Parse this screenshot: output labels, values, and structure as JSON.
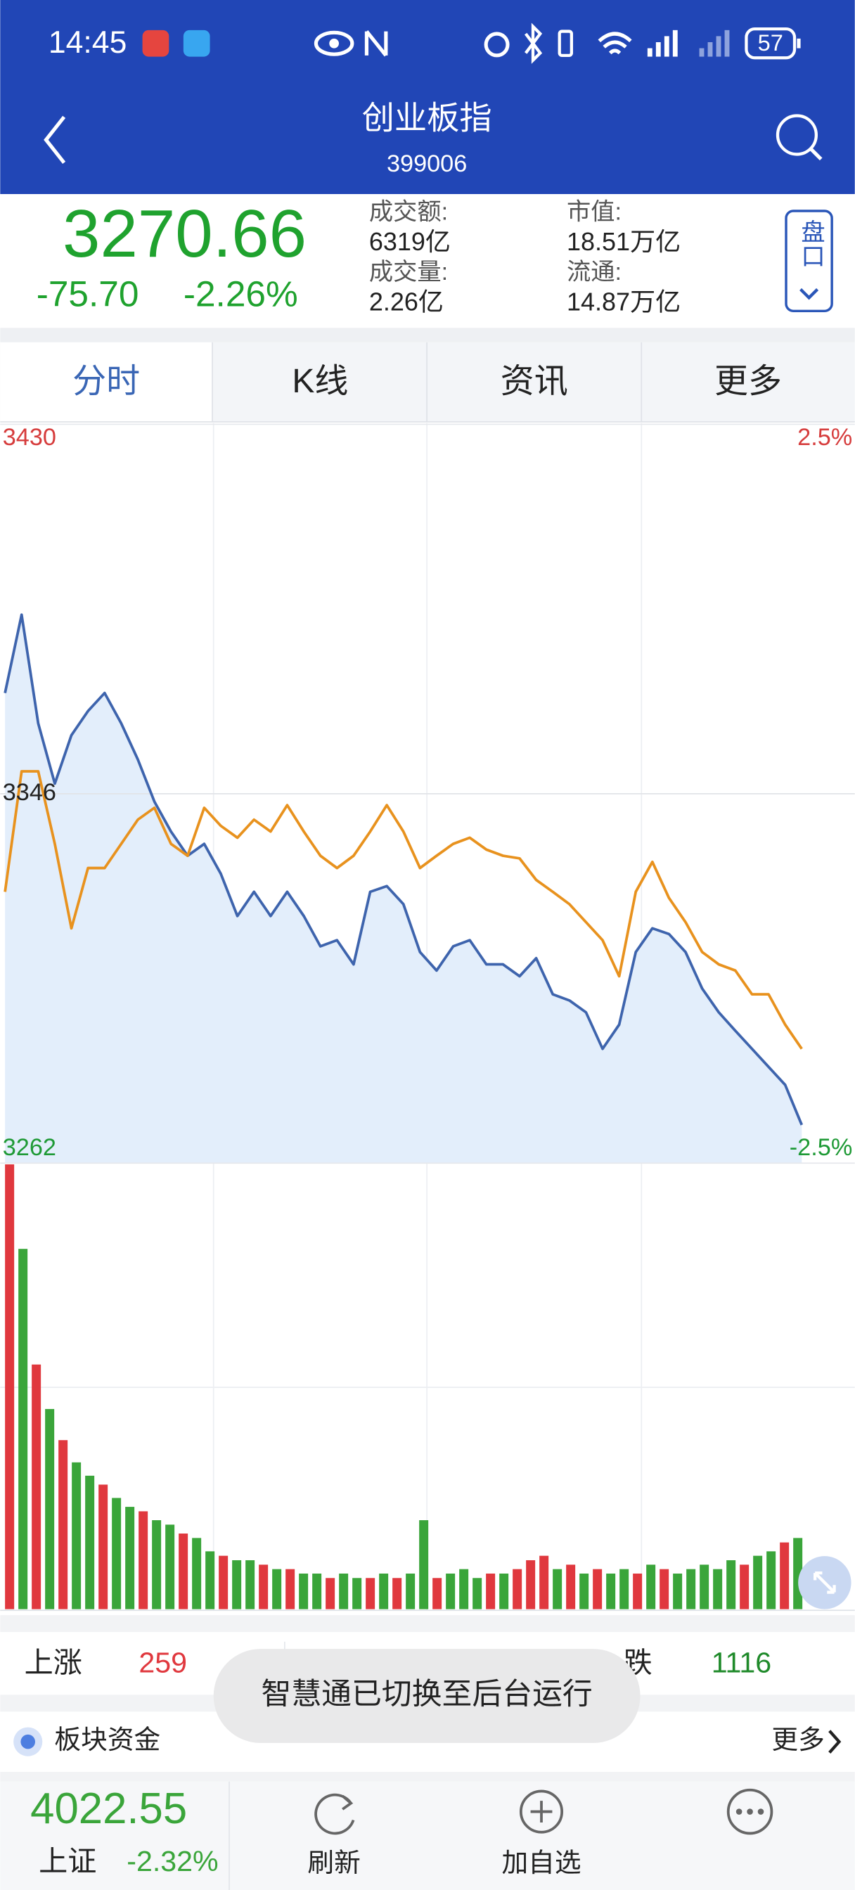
{
  "status_bar": {
    "time": "14:45",
    "battery": "57"
  },
  "header": {
    "title": "创业板指",
    "code": "399006"
  },
  "quote": {
    "price": "3270.66",
    "change": "-75.70",
    "change_pct": "-2.26%",
    "stats": [
      {
        "label": "成交额:",
        "value": "6319亿"
      },
      {
        "label": "成交量:",
        "value": "2.26亿"
      },
      {
        "label": "市值:",
        "value": "18.51万亿"
      },
      {
        "label": "流通:",
        "value": "14.87万亿"
      }
    ],
    "button": "盘口"
  },
  "tabs": [
    "分时",
    "K线",
    "资讯",
    "更多"
  ],
  "active_tab": 0,
  "chart_data": {
    "type": "line",
    "ylim": [
      3262,
      3430
    ],
    "yticks": [
      3262,
      3346,
      3430
    ],
    "y2lim": [
      -2.5,
      2.5
    ],
    "y2ticks": [
      {
        "value": -2.5,
        "label": "-2.5%"
      },
      {
        "value": 2.5,
        "label": "2.5%"
      }
    ],
    "area_color": "#e3eefb",
    "series": [
      {
        "color": "#3e64ad",
        "values": [
          3368.9,
          3386.7,
          3362.0,
          3348.3,
          3359.3,
          3364.8,
          3368.9,
          3362.0,
          3353.8,
          3344.2,
          3337.4,
          3331.9,
          3334.6,
          3327.8,
          3318.2,
          3323.7,
          3318.2,
          3323.7,
          3318.2,
          3311.3,
          3312.7,
          3307.2,
          3323.7,
          3325.0,
          3320.9,
          3310.0,
          3305.8,
          3311.3,
          3312.7,
          3307.2,
          3307.2,
          3304.5,
          3308.6,
          3300.4,
          3299.0,
          3296.3,
          3288.0,
          3293.5,
          3310.0,
          3315.4,
          3314.1,
          3310.0,
          3301.7,
          3296.3,
          3292.1,
          3288.0,
          3283.9,
          3279.8,
          3270.7
        ]
      },
      {
        "color": "#e8921e",
        "values": [
          3323.7,
          3351.1,
          3351.1,
          3334.6,
          3315.4,
          3329.1,
          3329.1,
          3334.6,
          3340.1,
          3342.8,
          3334.6,
          3331.9,
          3342.8,
          3338.7,
          3336.0,
          3340.1,
          3337.4,
          3343.4,
          3337.4,
          3331.9,
          3329.1,
          3331.9,
          3337.4,
          3343.4,
          3337.4,
          3329.1,
          3331.9,
          3334.6,
          3336.0,
          3333.3,
          3331.9,
          3331.3,
          3326.4,
          3323.7,
          3320.9,
          3316.8,
          3312.7,
          3304.5,
          3323.7,
          3330.5,
          3322.3,
          3316.8,
          3310.0,
          3307.2,
          3305.8,
          3300.4,
          3300.4,
          3293.5,
          3288.0
        ]
      }
    ]
  },
  "volume": {
    "type": "bar",
    "ylim": [
      0,
      100
    ],
    "values": [
      100,
      81,
      55,
      45,
      38,
      33,
      30,
      28,
      25,
      23,
      22,
      20,
      19,
      17,
      16,
      13,
      12,
      11,
      11,
      10,
      9,
      9,
      8,
      8,
      7,
      8,
      7,
      7,
      8,
      7,
      8,
      20,
      7,
      8,
      9,
      7,
      8,
      8,
      9,
      11,
      12,
      9,
      10,
      8,
      9,
      8,
      9,
      8,
      10,
      9,
      8,
      9,
      10,
      9,
      11,
      10,
      12,
      13,
      15,
      16
    ],
    "colors": [
      "#e0383e",
      "#3aa53a",
      "#e0383e",
      "#3aa53a",
      "#e0383e",
      "#3aa53a",
      "#3aa53a",
      "#e0383e",
      "#3aa53a",
      "#3aa53a",
      "#e0383e",
      "#3aa53a",
      "#3aa53a",
      "#e0383e",
      "#3aa53a",
      "#3aa53a",
      "#e0383e",
      "#3aa53a",
      "#3aa53a",
      "#e0383e",
      "#3aa53a",
      "#e0383e",
      "#3aa53a",
      "#3aa53a",
      "#e0383e",
      "#3aa53a",
      "#3aa53a",
      "#e0383e",
      "#3aa53a",
      "#e0383e",
      "#3aa53a",
      "#3aa53a",
      "#e0383e",
      "#3aa53a",
      "#3aa53a",
      "#3aa53a",
      "#e0383e",
      "#3aa53a",
      "#e0383e",
      "#e0383e",
      "#e0383e",
      "#3aa53a",
      "#e0383e",
      "#3aa53a",
      "#e0383e",
      "#3aa53a",
      "#3aa53a",
      "#e0383e",
      "#3aa53a",
      "#e0383e",
      "#3aa53a",
      "#3aa53a",
      "#3aa53a",
      "#3aa53a",
      "#3aa53a",
      "#e0383e",
      "#3aa53a",
      "#3aa53a",
      "#e0383e",
      "#3aa53a"
    ]
  },
  "breadth": {
    "up_label": "上涨",
    "up": "259",
    "down_label": "跌",
    "down": "1116"
  },
  "toast": "智慧通已切换至后台运行",
  "fund": {
    "label": "板块资金",
    "more": "更多"
  },
  "footer": {
    "index_price": "4022.55",
    "index_name": "上证",
    "index_change": "-2.32%",
    "actions": [
      "刷新",
      "加自选"
    ]
  }
}
